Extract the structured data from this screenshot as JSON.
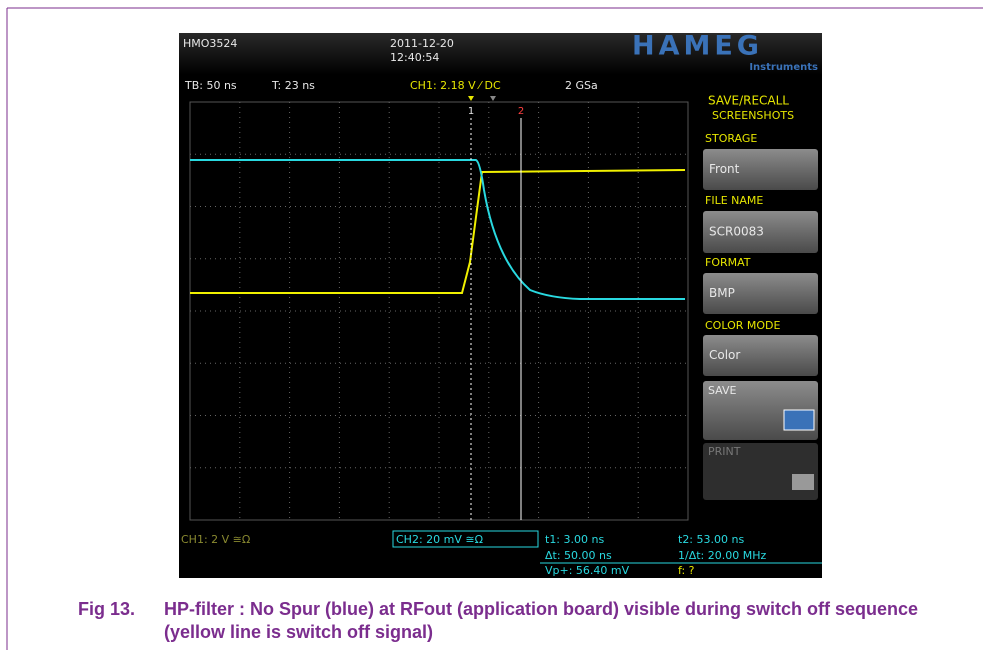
{
  "figure": {
    "screen": {
      "header": {
        "model": "HMO3524",
        "date": "2011-12-20",
        "time": "12:40:54",
        "brand": "HAMEG",
        "brand_sub": "Instruments"
      },
      "status": {
        "timebase": "TB: 50 ns",
        "trigger_time": "T: 23 ns",
        "ch1_trigger": "CH1: 2.18 V ⁄ DC",
        "sample_rate": "2 GSa"
      },
      "cursors": [
        "1",
        "2"
      ],
      "menu": {
        "title": "SAVE/RECALL",
        "subtitle": "SCREENSHOTS",
        "storage_label": "STORAGE",
        "storage_value": "Front",
        "file_name_label": "FILE NAME",
        "file_name_value": "SCR0083",
        "format_label": "FORMAT",
        "format_value": "BMP",
        "color_mode_label": "COLOR MODE",
        "color_mode_value": "Color",
        "save": "SAVE",
        "print": "PRINT"
      },
      "footer": {
        "ch1": "CH1: 2 V ≅Ω",
        "ch2": "CH2: 20 mV ≅Ω",
        "t1": "t1: 3.00 ns",
        "t2": "t2: 53.00 ns",
        "dt": "Δt: 50.00 ns",
        "inv_dt": "1/Δt: 20.00 MHz",
        "vp": "Vp+: 56.40 mV",
        "f": "f: ?"
      }
    },
    "caption": {
      "label": "Fig 13.",
      "text": "HP-filter : No Spur (blue) at RFout (application board) visible during switch off sequence (yellow line is switch off signal)"
    }
  }
}
